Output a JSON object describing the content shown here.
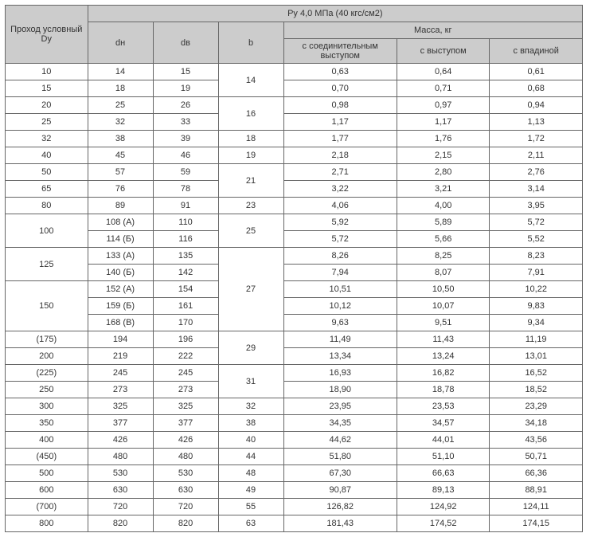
{
  "header": {
    "title": "Ру 4,0 МПа (40 кгс/см2)",
    "col0": "Проход условный Dу",
    "col1": "dн",
    "col2": "dв",
    "col3": "b",
    "mass_group": "Масса, кг",
    "mass1": "с соединительным выступом",
    "mass2": "с выступом",
    "mass3": "с впадиной"
  },
  "rows": {
    "r0": {
      "dy": "10",
      "dn": "14",
      "dv": "15",
      "m1": "0,63",
      "m2": "0,64",
      "m3": "0,61"
    },
    "r1": {
      "dy": "15",
      "dn": "18",
      "dv": "19",
      "m1": "0,70",
      "m2": "0,71",
      "m3": "0,68"
    },
    "r2": {
      "dy": "20",
      "dn": "25",
      "dv": "26",
      "m1": "0,98",
      "m2": "0,97",
      "m3": "0,94"
    },
    "r3": {
      "dy": "25",
      "dn": "32",
      "dv": "33",
      "m1": "1,17",
      "m2": "1,17",
      "m3": "1,13"
    },
    "r4": {
      "dy": "32",
      "dn": "38",
      "dv": "39",
      "b": "18",
      "m1": "1,77",
      "m2": "1,76",
      "m3": "1,72"
    },
    "r5": {
      "dy": "40",
      "dn": "45",
      "dv": "46",
      "b": "19",
      "m1": "2,18",
      "m2": "2,15",
      "m3": "2,11"
    },
    "r6": {
      "dy": "50",
      "dn": "57",
      "dv": "59",
      "m1": "2,71",
      "m2": "2,80",
      "m3": "2,76"
    },
    "r7": {
      "dy": "65",
      "dn": "76",
      "dv": "78",
      "m1": "3,22",
      "m2": "3,21",
      "m3": "3,14"
    },
    "r8": {
      "dy": "80",
      "dn": "89",
      "dv": "91",
      "b": "23",
      "m1": "4,06",
      "m2": "4,00",
      "m3": "3,95"
    },
    "r9": {
      "dn": "108 (А)",
      "dv": "110",
      "m1": "5,92",
      "m2": "5,89",
      "m3": "5,72"
    },
    "r10": {
      "dn": "114 (Б)",
      "dv": "116",
      "m1": "5,72",
      "m2": "5,66",
      "m3": "5,52"
    },
    "r11": {
      "dn": "133 (А)",
      "dv": "135",
      "m1": "8,26",
      "m2": "8,25",
      "m3": "8,23"
    },
    "r12": {
      "dn": "140 (Б)",
      "dv": "142",
      "m1": "7,94",
      "m2": "8,07",
      "m3": "7,91"
    },
    "r13": {
      "dn": "152 (А)",
      "dv": "154",
      "m1": "10,51",
      "m2": "10,50",
      "m3": "10,22"
    },
    "r14": {
      "dn": "159 (Б)",
      "dv": "161",
      "m1": "10,12",
      "m2": "10,07",
      "m3": "9,83"
    },
    "r15": {
      "dn": "168 (В)",
      "dv": "170",
      "m1": "9,63",
      "m2": "9,51",
      "m3": "9,34"
    },
    "r16": {
      "dy": "(175)",
      "dn": "194",
      "dv": "196",
      "m1": "11,49",
      "m2": "11,43",
      "m3": "11,19"
    },
    "r17": {
      "dy": "200",
      "dn": "219",
      "dv": "222",
      "m1": "13,34",
      "m2": "13,24",
      "m3": "13,01"
    },
    "r18": {
      "dy": "(225)",
      "dn": "245",
      "dv": "245",
      "m1": "16,93",
      "m2": "16,82",
      "m3": "16,52"
    },
    "r19": {
      "dy": "250",
      "dn": "273",
      "dv": "273",
      "m1": "18,90",
      "m2": "18,78",
      "m3": "18,52"
    },
    "r20": {
      "dy": "300",
      "dn": "325",
      "dv": "325",
      "b": "32",
      "m1": "23,95",
      "m2": "23,53",
      "m3": "23,29"
    },
    "r21": {
      "dy": "350",
      "dn": "377",
      "dv": "377",
      "b": "38",
      "m1": "34,35",
      "m2": "34,57",
      "m3": "34,18"
    },
    "r22": {
      "dy": "400",
      "dn": "426",
      "dv": "426",
      "b": "40",
      "m1": "44,62",
      "m2": "44,01",
      "m3": "43,56"
    },
    "r23": {
      "dy": "(450)",
      "dn": "480",
      "dv": "480",
      "b": "44",
      "m1": "51,80",
      "m2": "51,10",
      "m3": "50,71"
    },
    "r24": {
      "dy": "500",
      "dn": "530",
      "dv": "530",
      "b": "48",
      "m1": "67,30",
      "m2": "66,63",
      "m3": "66,36"
    },
    "r25": {
      "dy": "600",
      "dn": "630",
      "dv": "630",
      "b": "49",
      "m1": "90,87",
      "m2": "89,13",
      "m3": "88,91"
    },
    "r26": {
      "dy": "(700)",
      "dn": "720",
      "dv": "720",
      "b": "55",
      "m1": "126,82",
      "m2": "124,92",
      "m3": "124,11"
    },
    "r27": {
      "dy": "800",
      "dn": "820",
      "dv": "820",
      "b": "63",
      "m1": "181,43",
      "m2": "174,52",
      "m3": "174,15"
    }
  },
  "merged": {
    "b14": "14",
    "b16": "16",
    "b21": "21",
    "b25": "25",
    "b27": "27",
    "b29": "29",
    "b31": "31",
    "dy100": "100",
    "dy125": "125",
    "dy150": "150"
  }
}
